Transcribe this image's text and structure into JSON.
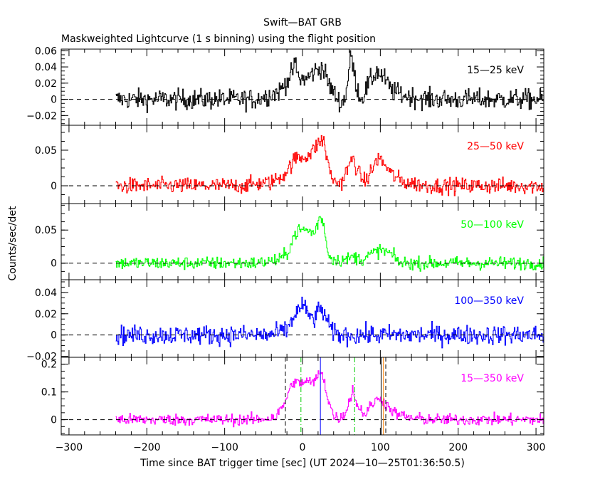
{
  "title": "Swift—BAT GRB",
  "subtitle": "Maskweighted Lightcurve (1 s binning) using the flight position",
  "xlabel": "Time since BAT trigger time [sec] (UT 2024—10—25T01:36:50.5)",
  "ylabel": "Counts/sec/det",
  "chart_data": {
    "type": "line",
    "xlim": [
      -310,
      310
    ],
    "x_ticks": [
      -300,
      -200,
      -100,
      0,
      100,
      200,
      300
    ],
    "x_tick_labels": [
      "−300",
      "−200",
      "−100",
      "0",
      "100",
      "200",
      "300"
    ],
    "data_range": [
      -240,
      310
    ],
    "bin_seconds": 1,
    "panels": [
      {
        "band": "15—25 keV",
        "color": "#000000",
        "ylim": [
          -0.032,
          0.062
        ],
        "y_ticks": [
          -0.02,
          0,
          0.02,
          0.04,
          0.06
        ],
        "y_tick_labels": [
          "−0.02",
          "0",
          "0.02",
          "0.04",
          "0.06"
        ],
        "noise_sigma": 0.009,
        "profile": [
          [
            -240,
            0
          ],
          [
            -60,
            0
          ],
          [
            -30,
            0.01
          ],
          [
            -15,
            0.03
          ],
          [
            -10,
            0.045
          ],
          [
            -5,
            0.025
          ],
          [
            5,
            0.025
          ],
          [
            15,
            0.035
          ],
          [
            25,
            0.04
          ],
          [
            35,
            0.015
          ],
          [
            45,
            0.0
          ],
          [
            50,
            -0.005
          ],
          [
            55,
            0.005
          ],
          [
            62,
            0.055
          ],
          [
            68,
            0.02
          ],
          [
            75,
            0.0
          ],
          [
            85,
            0.02
          ],
          [
            95,
            0.035
          ],
          [
            105,
            0.025
          ],
          [
            115,
            0.01
          ],
          [
            130,
            0.005
          ],
          [
            160,
            0.0
          ],
          [
            310,
            0
          ]
        ]
      },
      {
        "band": "25—50 keV",
        "color": "#ff0000",
        "ylim": [
          -0.025,
          0.085
        ],
        "y_ticks": [
          0,
          0.05
        ],
        "y_tick_labels": [
          "0",
          "0.05"
        ],
        "noise_sigma": 0.008,
        "profile": [
          [
            -240,
            0
          ],
          [
            -80,
            0
          ],
          [
            -40,
            0.005
          ],
          [
            -25,
            0.015
          ],
          [
            -15,
            0.03
          ],
          [
            -8,
            0.04
          ],
          [
            0,
            0.04
          ],
          [
            10,
            0.045
          ],
          [
            20,
            0.06
          ],
          [
            27,
            0.065
          ],
          [
            32,
            0.03
          ],
          [
            40,
            0.005
          ],
          [
            50,
            0.005
          ],
          [
            58,
            0.025
          ],
          [
            65,
            0.04
          ],
          [
            70,
            0.02
          ],
          [
            80,
            0.005
          ],
          [
            90,
            0.025
          ],
          [
            97,
            0.04
          ],
          [
            105,
            0.03
          ],
          [
            115,
            0.015
          ],
          [
            130,
            0.005
          ],
          [
            160,
            0.0
          ],
          [
            310,
            0
          ]
        ]
      },
      {
        "band": "50—100 keV",
        "color": "#00ff00",
        "ylim": [
          -0.025,
          0.09
        ],
        "y_ticks": [
          0,
          0.05
        ],
        "y_tick_labels": [
          "0",
          "0.05"
        ],
        "noise_sigma": 0.007,
        "profile": [
          [
            -240,
            0
          ],
          [
            -60,
            0
          ],
          [
            -30,
            0.005
          ],
          [
            -20,
            0.015
          ],
          [
            -12,
            0.04
          ],
          [
            -5,
            0.05
          ],
          [
            5,
            0.05
          ],
          [
            15,
            0.045
          ],
          [
            22,
            0.07
          ],
          [
            27,
            0.06
          ],
          [
            32,
            0.015
          ],
          [
            40,
            0.005
          ],
          [
            55,
            0.005
          ],
          [
            65,
            0.01
          ],
          [
            75,
            0.005
          ],
          [
            90,
            0.015
          ],
          [
            100,
            0.02
          ],
          [
            112,
            0.015
          ],
          [
            125,
            0.0
          ],
          [
            310,
            0
          ]
        ]
      },
      {
        "band": "100—350 keV",
        "color": "#0000ff",
        "ylim": [
          -0.021,
          0.052
        ],
        "y_ticks": [
          -0.02,
          0,
          0.02,
          0.04
        ],
        "y_tick_labels": [
          "−0.02",
          "0",
          "0.02",
          "0.04"
        ],
        "noise_sigma": 0.0065,
        "profile": [
          [
            -240,
            0
          ],
          [
            -40,
            0
          ],
          [
            -20,
            0.005
          ],
          [
            -10,
            0.02
          ],
          [
            -3,
            0.025
          ],
          [
            0,
            0.03
          ],
          [
            5,
            0.02
          ],
          [
            15,
            0.015
          ],
          [
            22,
            0.025
          ],
          [
            28,
            0.02
          ],
          [
            35,
            0.005
          ],
          [
            45,
            0.0
          ],
          [
            310,
            0
          ]
        ]
      },
      {
        "band": "15—350 keV",
        "color": "#ff00ff",
        "ylim": [
          -0.055,
          0.225
        ],
        "y_ticks": [
          0,
          0.1,
          0.2
        ],
        "y_tick_labels": [
          "0",
          "0.1",
          "0.2"
        ],
        "noise_sigma": 0.015,
        "profile": [
          [
            -240,
            0
          ],
          [
            -60,
            0
          ],
          [
            -35,
            0.01
          ],
          [
            -25,
            0.05
          ],
          [
            -18,
            0.1
          ],
          [
            -12,
            0.14
          ],
          [
            -5,
            0.13
          ],
          [
            5,
            0.14
          ],
          [
            12,
            0.13
          ],
          [
            20,
            0.16
          ],
          [
            25,
            0.17
          ],
          [
            32,
            0.08
          ],
          [
            40,
            0.01
          ],
          [
            50,
            0.005
          ],
          [
            58,
            0.05
          ],
          [
            64,
            0.11
          ],
          [
            70,
            0.05
          ],
          [
            80,
            0.02
          ],
          [
            90,
            0.06
          ],
          [
            100,
            0.08
          ],
          [
            108,
            0.05
          ],
          [
            120,
            0.02
          ],
          [
            140,
            0.005
          ],
          [
            170,
            0.0
          ],
          [
            310,
            0
          ]
        ],
        "markers": [
          {
            "x": -22,
            "color": "#000000",
            "style": "dash"
          },
          {
            "x": 107,
            "color": "#000000",
            "style": "dash"
          },
          {
            "x": -2,
            "color": "#00cc00",
            "style": "dashdot"
          },
          {
            "x": 67,
            "color": "#00cc00",
            "style": "dashdot"
          },
          {
            "x": 23,
            "color": "#0000ff",
            "style": "solid"
          },
          {
            "x": 101,
            "color": "#000000",
            "style": "solid"
          },
          {
            "x": 104,
            "color": "#ff8000",
            "style": "solid"
          }
        ]
      }
    ]
  }
}
